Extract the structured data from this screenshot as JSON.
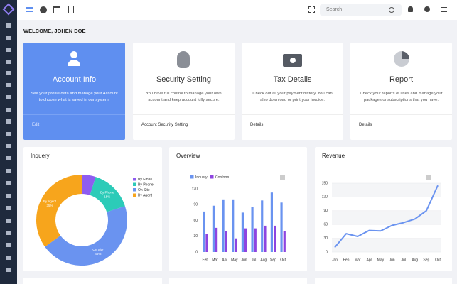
{
  "header": {
    "search_placeholder": "Search"
  },
  "welcome": "WELCOME, JOHEN DOE",
  "cards": [
    {
      "title": "Account Info",
      "text": "See your profile data and manage your Account to choose what is saved in our system.",
      "link": "Edit"
    },
    {
      "title": "Security Setting",
      "text": "You have full control to manage your own account and keep account fully secure.",
      "link": "Account Security Setting"
    },
    {
      "title": "Tax Details",
      "text": "Check out all your payment history. You can also download or print your invoice.",
      "link": "Details"
    },
    {
      "title": "Report",
      "text": "Check your reports of uses and manage your packages or subscriptions that you have.",
      "link": "Details"
    }
  ],
  "chart_data": [
    {
      "type": "pie",
      "title": "Inquery",
      "categories": [
        "By Email",
        "By Phone",
        "On Site",
        "By Agent"
      ],
      "values": [
        5,
        15,
        45,
        35
      ],
      "value_labels": [
        null,
        "15%",
        "45%",
        "35%"
      ],
      "colors": [
        "#8e5cf0",
        "#2ccbb8",
        "#6a93f0",
        "#f7a51c"
      ]
    },
    {
      "type": "bar",
      "title": "Overview",
      "categories": [
        "Feb",
        "Mar",
        "Apr",
        "May",
        "Jun",
        "Jul",
        "Aug",
        "Sep",
        "Oct"
      ],
      "series": [
        {
          "name": "Inquery",
          "color": "#6a93f0",
          "values": [
            77,
            88,
            100,
            100,
            75,
            86,
            98,
            113,
            94
          ]
        },
        {
          "name": "Conform",
          "color": "#8e44e0",
          "values": [
            35,
            46,
            40,
            26,
            45,
            45,
            50,
            50,
            40
          ]
        }
      ],
      "ylim": [
        0,
        120
      ],
      "yticks": [
        0,
        30,
        60,
        90,
        120
      ],
      "grid": false
    },
    {
      "type": "line",
      "title": "Revenue",
      "categories": [
        "Jan",
        "Feb",
        "Mar",
        "Apr",
        "May",
        "Jun",
        "Jul",
        "Aug",
        "Sep",
        "Oct"
      ],
      "values": [
        10,
        40,
        34,
        47,
        46,
        58,
        64,
        72,
        90,
        145
      ],
      "color": "#6a93f0",
      "ylim": [
        0,
        150
      ],
      "yticks": [
        0,
        30,
        60,
        90,
        120,
        150
      ],
      "grid": true
    }
  ]
}
